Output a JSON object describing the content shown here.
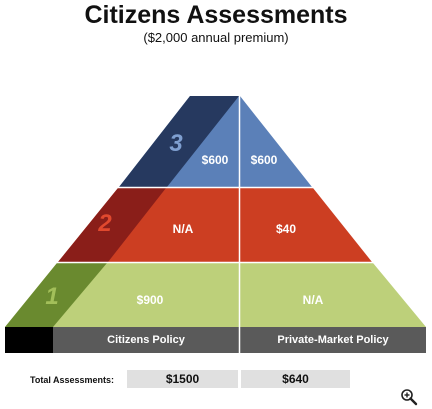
{
  "title": "Citizens Assessments",
  "subtitle": "($2,000 annual premium)",
  "tiers": [
    {
      "number": "3",
      "citizens": "$600",
      "private": "$600"
    },
    {
      "number": "2",
      "citizens": "N/A",
      "private": "$40"
    },
    {
      "number": "1",
      "citizens": "$900",
      "private": "N/A"
    }
  ],
  "columns": {
    "citizens": "Citizens Policy",
    "private": "Private-Market Policy"
  },
  "totals": {
    "label": "Total Assessments:",
    "citizens": "$1500",
    "private": "$640"
  },
  "colors": {
    "tier3": "#5b80b8",
    "tier3_dark": "#26395f",
    "tier2": "#cc3e22",
    "tier2_dark": "#8a1e19",
    "tier1": "#bdd07a",
    "tier1_dark": "#6a8a2f",
    "header": "#5a5a5a"
  },
  "icons": {
    "zoom": "zoom-in-icon"
  }
}
